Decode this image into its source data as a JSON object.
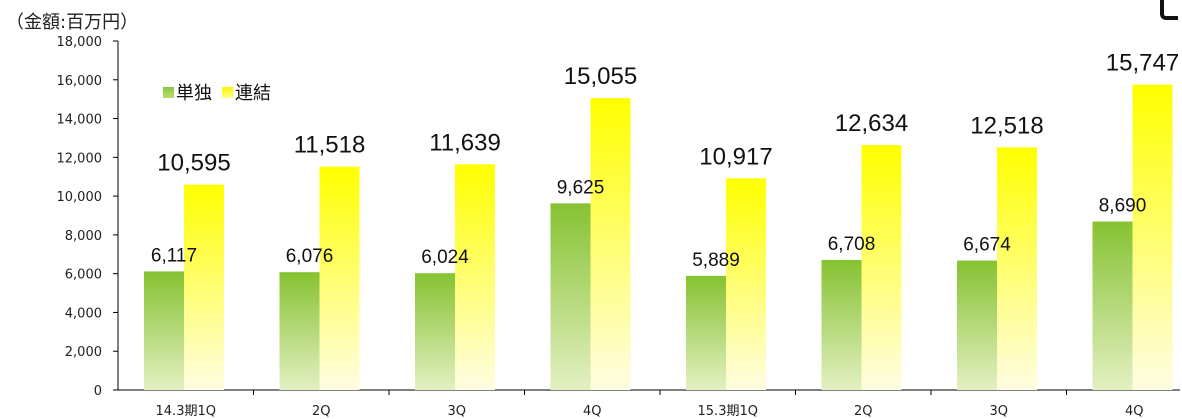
{
  "unit_label": "（金額:百万円）",
  "legend": {
    "single": "単独",
    "consolidated": "連結"
  },
  "colors": {
    "single_top": "#86c232",
    "single_bottom": "#e3f0c2",
    "consolidated_top": "#ffff00",
    "consolidated_bottom": "#fffde2"
  },
  "chart_data": {
    "type": "bar",
    "categories": [
      "14.3期1Q",
      "2Q",
      "3Q",
      "4Q",
      "15.3期1Q",
      "2Q",
      "3Q",
      "4Q"
    ],
    "series": [
      {
        "name": "単独",
        "values": [
          6117,
          6076,
          6024,
          9625,
          5889,
          6708,
          6674,
          8690
        ],
        "labels": [
          "6,117",
          "6,076",
          "6,024",
          "9,625",
          "5,889",
          "6,708",
          "6,674",
          "8,690"
        ]
      },
      {
        "name": "連結",
        "values": [
          10595,
          11518,
          11639,
          15055,
          10917,
          12634,
          12518,
          15747
        ],
        "labels": [
          "10,595",
          "11,518",
          "11,639",
          "15,055",
          "10,917",
          "12,634",
          "12,518",
          "15,747"
        ]
      }
    ],
    "ylim": [
      0,
      18000
    ],
    "yticks": [
      0,
      2000,
      4000,
      6000,
      8000,
      10000,
      12000,
      14000,
      16000,
      18000
    ],
    "ytick_labels": [
      "0",
      "2,000",
      "4,000",
      "6,000",
      "8,000",
      "10,000",
      "12,000",
      "14,000",
      "16,000",
      "18,000"
    ],
    "legend_position": "top-left",
    "grid": false
  }
}
